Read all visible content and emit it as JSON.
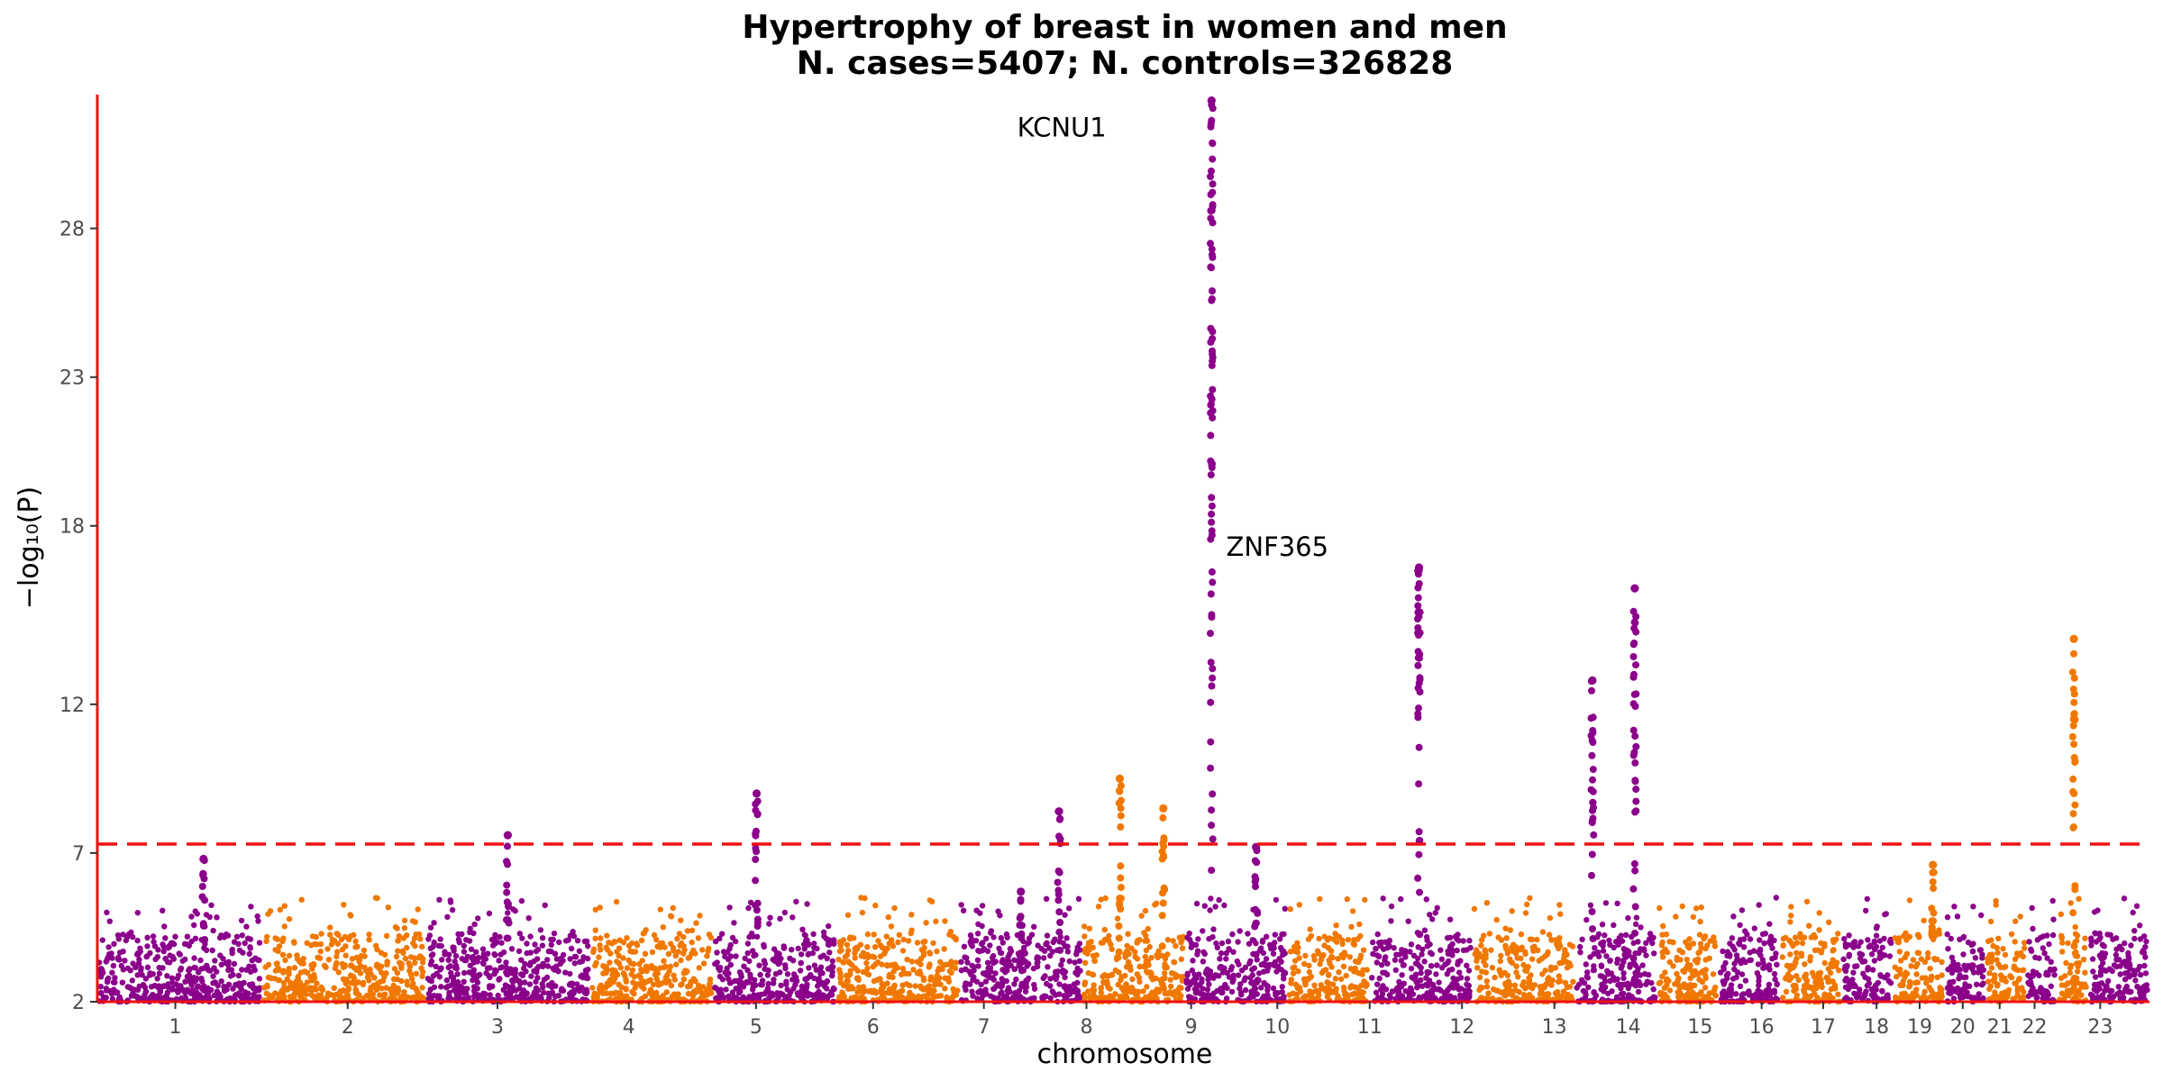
{
  "chart_data": {
    "type": "scatter",
    "subtype": "manhattan",
    "title": [
      "Hypertrophy of breast in women and men",
      "N. cases=5407; N. controls=326828"
    ],
    "xlabel": "chromosome",
    "ylabel": "−log₁₀(P)",
    "ylim": [
      2,
      32.5
    ],
    "yticks": [
      2,
      7,
      12,
      18,
      23,
      28
    ],
    "significance_threshold": 7.3,
    "threshold_color": "#ee1111",
    "axis_color": "#ee1111",
    "colors": {
      "odd": "#8b008b",
      "even": "#f07800"
    },
    "grid": false,
    "chromosomes": [
      {
        "label": "1",
        "start": 0.0,
        "end": 0.08,
        "baseMax": 4.3,
        "spikes": [
          {
            "x": 0.65,
            "y": 6.8
          }
        ]
      },
      {
        "label": "2",
        "start": 0.08,
        "end": 0.16,
        "baseMax": 4.3,
        "spikes": []
      },
      {
        "label": "3",
        "start": 0.16,
        "end": 0.24,
        "baseMax": 4.3,
        "spikes": [
          {
            "x": 0.5,
            "y": 7.6
          }
        ]
      },
      {
        "label": "4",
        "start": 0.24,
        "end": 0.3,
        "baseMax": 4.3,
        "spikes": []
      },
      {
        "label": "5",
        "start": 0.3,
        "end": 0.36,
        "baseMax": 4.3,
        "spikes": [
          {
            "x": 0.35,
            "y": 9.0
          }
        ]
      },
      {
        "label": "6",
        "start": 0.36,
        "end": 0.42,
        "baseMax": 4.3,
        "spikes": []
      },
      {
        "label": "7",
        "start": 0.42,
        "end": 0.48,
        "baseMax": 4.3,
        "spikes": [
          {
            "x": 0.5,
            "y": 5.7
          },
          {
            "x": 0.82,
            "y": 8.4
          }
        ]
      },
      {
        "label": "8",
        "start": 0.48,
        "end": 0.53,
        "baseMax": 4.3,
        "spikes": [
          {
            "x": 0.36,
            "y": 9.5
          },
          {
            "x": 0.8,
            "y": 8.5
          }
        ]
      },
      {
        "label": "9",
        "start": 0.53,
        "end": 0.58,
        "baseMax": 4.3,
        "spikes": [
          {
            "x": 0.25,
            "y": 32.3
          },
          {
            "x": 0.7,
            "y": 7.2
          }
        ]
      },
      {
        "label": "10",
        "start": 0.58,
        "end": 0.62,
        "baseMax": 4.3,
        "spikes": []
      },
      {
        "label": "11",
        "start": 0.62,
        "end": 0.67,
        "baseMax": 4.3,
        "spikes": [
          {
            "x": 0.48,
            "y": 16.6
          }
        ]
      },
      {
        "label": "12",
        "start": 0.67,
        "end": 0.72,
        "baseMax": 4.3,
        "spikes": []
      },
      {
        "label": "13",
        "start": 0.72,
        "end": 0.76,
        "baseMax": 4.3,
        "spikes": [
          {
            "x": 0.2,
            "y": 12.8
          },
          {
            "x": 0.74,
            "y": 15.9
          }
        ]
      },
      {
        "label": "14",
        "start": 0.76,
        "end": 0.79,
        "baseMax": 4.3,
        "spikes": []
      },
      {
        "label": "15",
        "start": 0.79,
        "end": 0.82,
        "baseMax": 4.3,
        "spikes": []
      },
      {
        "label": "16",
        "start": 0.82,
        "end": 0.85,
        "baseMax": 4.3,
        "spikes": []
      },
      {
        "label": "17",
        "start": 0.85,
        "end": 0.875,
        "baseMax": 4.3,
        "spikes": []
      },
      {
        "label": "18",
        "start": 0.875,
        "end": 0.9,
        "baseMax": 4.3,
        "spikes": [
          {
            "x": 0.8,
            "y": 6.6
          }
        ]
      },
      {
        "label": "19",
        "start": 0.9,
        "end": 0.92,
        "baseMax": 4.3,
        "spikes": []
      },
      {
        "label": "20",
        "start": 0.92,
        "end": 0.94,
        "baseMax": 4.3,
        "spikes": []
      },
      {
        "label": "21",
        "start": 0.94,
        "end": 0.955,
        "baseMax": 4.3,
        "spikes": []
      },
      {
        "label": "22",
        "start": 0.955,
        "end": 0.97,
        "baseMax": 4.3,
        "spikes": [
          {
            "x": 0.55,
            "y": 14.2
          }
        ]
      },
      {
        "label": "23",
        "start": 0.97,
        "end": 1.0,
        "baseMax": 4.3,
        "spikes": []
      }
    ],
    "x_tick_labels": [
      {
        "label": "1",
        "pos": 0.038
      },
      {
        "label": "2",
        "pos": 0.122
      },
      {
        "label": "3",
        "pos": 0.195
      },
      {
        "label": "4",
        "pos": 0.259
      },
      {
        "label": "5",
        "pos": 0.321
      },
      {
        "label": "6",
        "pos": 0.378
      },
      {
        "label": "7",
        "pos": 0.432
      },
      {
        "label": "8",
        "pos": 0.482
      },
      {
        "label": "9",
        "pos": 0.533
      },
      {
        "label": "10",
        "pos": 0.575
      },
      {
        "label": "11",
        "pos": 0.62
      },
      {
        "label": "12",
        "pos": 0.665
      },
      {
        "label": "13",
        "pos": 0.71
      },
      {
        "label": "14",
        "pos": 0.746
      },
      {
        "label": "15",
        "pos": 0.781
      },
      {
        "label": "16",
        "pos": 0.811
      },
      {
        "label": "17",
        "pos": 0.841
      },
      {
        "label": "18",
        "pos": 0.867
      },
      {
        "label": "19",
        "pos": 0.888
      },
      {
        "label": "20",
        "pos": 0.909
      },
      {
        "label": "21",
        "pos": 0.927
      },
      {
        "label": "22",
        "pos": 0.944
      },
      {
        "label": "23",
        "pos": 0.976
      }
    ],
    "annotations": [
      {
        "text": "KCNU1",
        "x": 0.47,
        "y": 31.4
      },
      {
        "text": "ZNF365",
        "x": 0.575,
        "y": 17.3
      }
    ]
  }
}
